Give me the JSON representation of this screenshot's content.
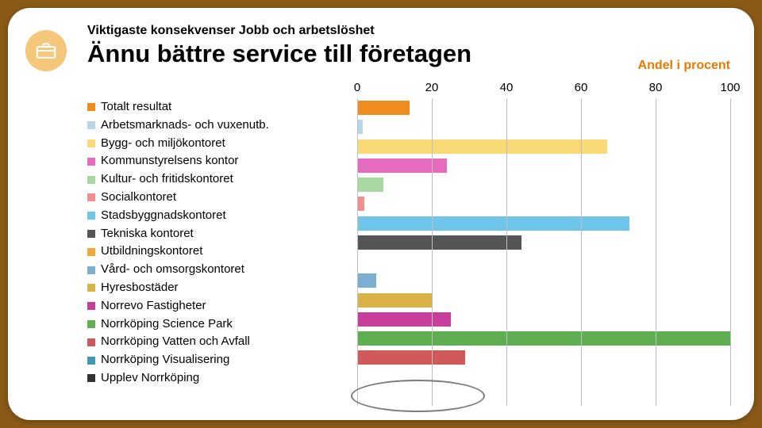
{
  "page": {
    "kicker": "Viktigaste konsekvenser Jobb och arbetslöshet",
    "title": "Ännu bättre service till företagen",
    "unit": "Andel i procent",
    "background_color": "#8a5a16",
    "card_color": "#ffffff",
    "badge_bg": "#f4c77a",
    "badge_icon_fg": "#ffffff"
  },
  "chart": {
    "type": "bar-horizontal",
    "xlim": [
      0,
      100
    ],
    "xticks": [
      0,
      20,
      40,
      60,
      80,
      100
    ],
    "grid_color": "#bfbfbf",
    "series": [
      {
        "label": "Totalt resultat",
        "value": 14,
        "color": "#ef8c1f"
      },
      {
        "label": "Arbetsmarknads- och vuxenutb.",
        "value": 1.5,
        "color": "#b6d6ea"
      },
      {
        "label": "Bygg- och miljökontoret",
        "value": 67,
        "color": "#fad977"
      },
      {
        "label": "Kommunstyrelsens kontor",
        "value": 24,
        "color": "#e46bbe"
      },
      {
        "label": "Kultur- och fritidskontoret",
        "value": 7,
        "color": "#a6d8a0"
      },
      {
        "label": "Socialkontoret",
        "value": 2,
        "color": "#f28f8f"
      },
      {
        "label": "Stadsbyggnadskontoret",
        "value": 73,
        "color": "#6fc5ea"
      },
      {
        "label": "Tekniska kontoret",
        "value": 44,
        "color": "#555555"
      },
      {
        "label": "Utbildningskontoret",
        "value": 0,
        "color": "#f1a93e"
      },
      {
        "label": "Vård- och omsorgskontoret",
        "value": 5,
        "color": "#7baed1"
      },
      {
        "label": "Hyresbostäder",
        "value": 20,
        "color": "#d9b24a"
      },
      {
        "label": "Norrevo Fastigheter",
        "value": 25,
        "color": "#c73f9a"
      },
      {
        "label": "Norrköping Science Park",
        "value": 100,
        "color": "#5fae52"
      },
      {
        "label": "Norrköping Vatten och Avfall",
        "value": 29,
        "color": "#d05a5a"
      },
      {
        "label": "Norrköping Visualisering",
        "value": 0,
        "color": "#4597b8"
      },
      {
        "label": "Upplev Norrköping",
        "value": 0,
        "color": "#333333"
      }
    ],
    "highlight_index": 15,
    "highlight_color": "#7a7a7a"
  }
}
